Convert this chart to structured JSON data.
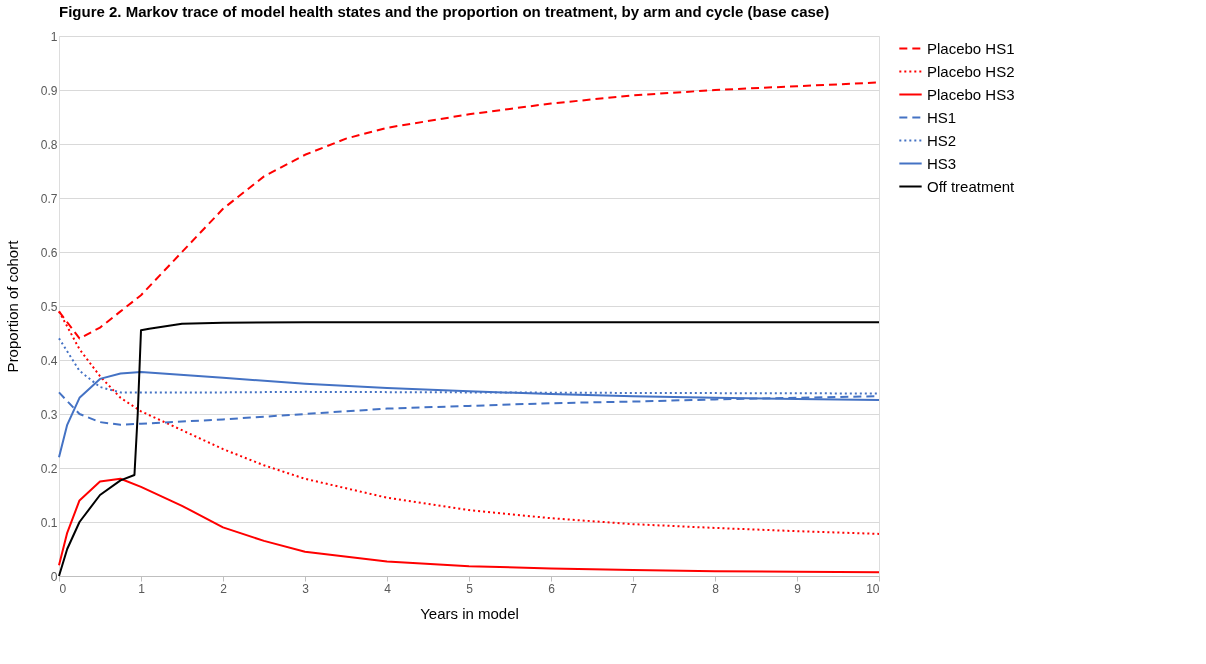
{
  "chart_data": {
    "type": "line",
    "title": "Figure 2. Markov trace of model health states and the proportion on treatment, by arm and cycle (base case)",
    "xlabel": "Years in model",
    "ylabel": "Proportion of cohort",
    "xlim": [
      0,
      10
    ],
    "xticks": [
      0,
      1,
      2,
      3,
      4,
      5,
      6,
      7,
      8,
      9,
      10
    ],
    "ylim": [
      0,
      1
    ],
    "yticks": [
      0,
      0.1,
      0.2,
      0.3,
      0.4,
      0.5,
      0.6,
      0.7,
      0.8,
      0.9,
      1
    ],
    "grid": "y",
    "legend": "right",
    "marker": "none",
    "series": [
      {
        "name": "Placebo HS1",
        "color": "#ff0000",
        "line_style": "dashed",
        "x": [
          0,
          0.25,
          0.5,
          0.75,
          1,
          1.5,
          2,
          2.5,
          3,
          3.5,
          4,
          5,
          6,
          7,
          8,
          9,
          10
        ],
        "values": [
          0.49,
          0.44,
          0.46,
          0.49,
          0.52,
          0.6,
          0.68,
          0.74,
          0.78,
          0.81,
          0.83,
          0.855,
          0.875,
          0.89,
          0.9,
          0.907,
          0.914
        ]
      },
      {
        "name": "Placebo HS2",
        "color": "#ff0000",
        "line_style": "dotted",
        "x": [
          0,
          0.25,
          0.5,
          0.75,
          1,
          1.5,
          2,
          2.5,
          3,
          4,
          5,
          6,
          7,
          8,
          9,
          10
        ],
        "values": [
          0.49,
          0.42,
          0.37,
          0.33,
          0.305,
          0.27,
          0.235,
          0.205,
          0.18,
          0.145,
          0.122,
          0.107,
          0.096,
          0.089,
          0.083,
          0.078
        ]
      },
      {
        "name": "Placebo HS3",
        "color": "#ff0000",
        "line_style": "solid",
        "x": [
          0,
          0.1,
          0.25,
          0.5,
          0.75,
          1,
          1.5,
          2,
          2.5,
          3,
          4,
          5,
          6,
          7,
          8,
          9,
          10
        ],
        "values": [
          0.02,
          0.08,
          0.14,
          0.175,
          0.18,
          0.165,
          0.13,
          0.09,
          0.065,
          0.045,
          0.027,
          0.018,
          0.014,
          0.011,
          0.009,
          0.008,
          0.007
        ]
      },
      {
        "name": "HS1",
        "color": "#4472c4",
        "line_style": "dashed",
        "x": [
          0,
          0.25,
          0.5,
          0.75,
          1,
          2,
          3,
          4,
          5,
          6,
          7,
          8,
          9,
          10
        ],
        "values": [
          0.34,
          0.3,
          0.285,
          0.28,
          0.282,
          0.29,
          0.3,
          0.31,
          0.315,
          0.32,
          0.323,
          0.327,
          0.33,
          0.333
        ]
      },
      {
        "name": "HS2",
        "color": "#4472c4",
        "line_style": "dotted",
        "x": [
          0,
          0.25,
          0.5,
          0.75,
          1,
          2,
          3,
          5,
          7,
          10
        ],
        "values": [
          0.44,
          0.38,
          0.35,
          0.34,
          0.34,
          0.34,
          0.341,
          0.34,
          0.339,
          0.338
        ]
      },
      {
        "name": "HS3",
        "color": "#4472c4",
        "line_style": "solid",
        "x": [
          0,
          0.1,
          0.25,
          0.5,
          0.75,
          1,
          2,
          3,
          4,
          5,
          6,
          7,
          8,
          9,
          10
        ],
        "values": [
          0.22,
          0.28,
          0.33,
          0.365,
          0.375,
          0.378,
          0.367,
          0.356,
          0.348,
          0.342,
          0.337,
          0.333,
          0.33,
          0.328,
          0.326
        ]
      },
      {
        "name": "Off treatment",
        "color": "#000000",
        "line_style": "solid",
        "x": [
          0,
          0.1,
          0.25,
          0.5,
          0.75,
          0.92,
          0.96,
          1,
          1.1,
          1.5,
          2,
          3,
          5,
          10
        ],
        "values": [
          0,
          0.05,
          0.1,
          0.15,
          0.177,
          0.187,
          0.3,
          0.455,
          0.458,
          0.467,
          0.469,
          0.47,
          0.47,
          0.47
        ]
      }
    ]
  }
}
